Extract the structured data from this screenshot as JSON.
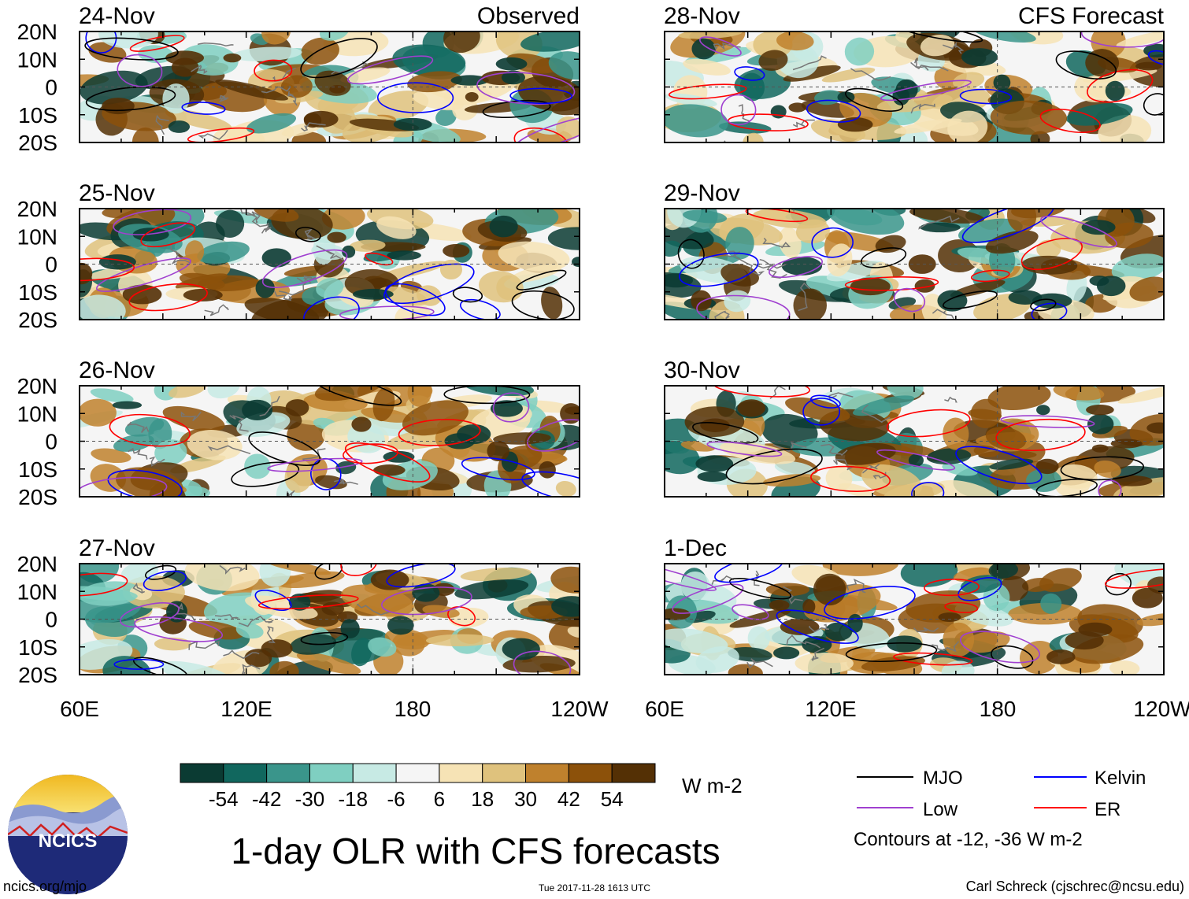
{
  "main_title": "1-day OLR with CFS forecasts",
  "labels": {
    "observed": "Observed",
    "forecast": "CFS Forecast"
  },
  "latitude_labels": [
    "20N",
    "10N",
    "0",
    "10S",
    "20S"
  ],
  "longitude_labels": [
    "60E",
    "120E",
    "180",
    "120W"
  ],
  "panels": [
    {
      "date": "24-Nov",
      "type": "observed",
      "seed": 11
    },
    {
      "date": "25-Nov",
      "type": "observed",
      "seed": 23
    },
    {
      "date": "26-Nov",
      "type": "observed",
      "seed": 37
    },
    {
      "date": "27-Nov",
      "type": "observed",
      "seed": 41
    },
    {
      "date": "28-Nov",
      "type": "forecast",
      "seed": 53
    },
    {
      "date": "29-Nov",
      "type": "forecast",
      "seed": 67
    },
    {
      "date": "30-Nov",
      "type": "forecast",
      "seed": 71
    },
    {
      "date": "1-Dec",
      "type": "forecast",
      "seed": 89
    }
  ],
  "colorbar": {
    "tick_labels": [
      "-54",
      "-42",
      "-30",
      "-18",
      "-6",
      "6",
      "18",
      "30",
      "42",
      "54"
    ],
    "colors": [
      "#0b3b33",
      "#11675e",
      "#3a958b",
      "#7fcfc1",
      "#c7eae4",
      "#f5f5f5",
      "#f6e3b5",
      "#dfc27d",
      "#bf812d",
      "#8c510a",
      "#543005"
    ],
    "units": "W m-2"
  },
  "legend": {
    "items": [
      {
        "label": "MJO",
        "color": "#000000"
      },
      {
        "label": "Kelvin",
        "color": "#0000ff"
      },
      {
        "label": "Low",
        "color": "#a040d0"
      },
      {
        "label": "ER",
        "color": "#ff0000"
      }
    ],
    "note": "Contours at -12, -36 W m-2"
  },
  "logo": {
    "text": "NCICS"
  },
  "footer": {
    "url": "ncics.org/mjo",
    "timestamp": "Tue 2017-11-28 1613 UTC",
    "author": "Carl Schreck (cjschrec@ncsu.edu)"
  }
}
